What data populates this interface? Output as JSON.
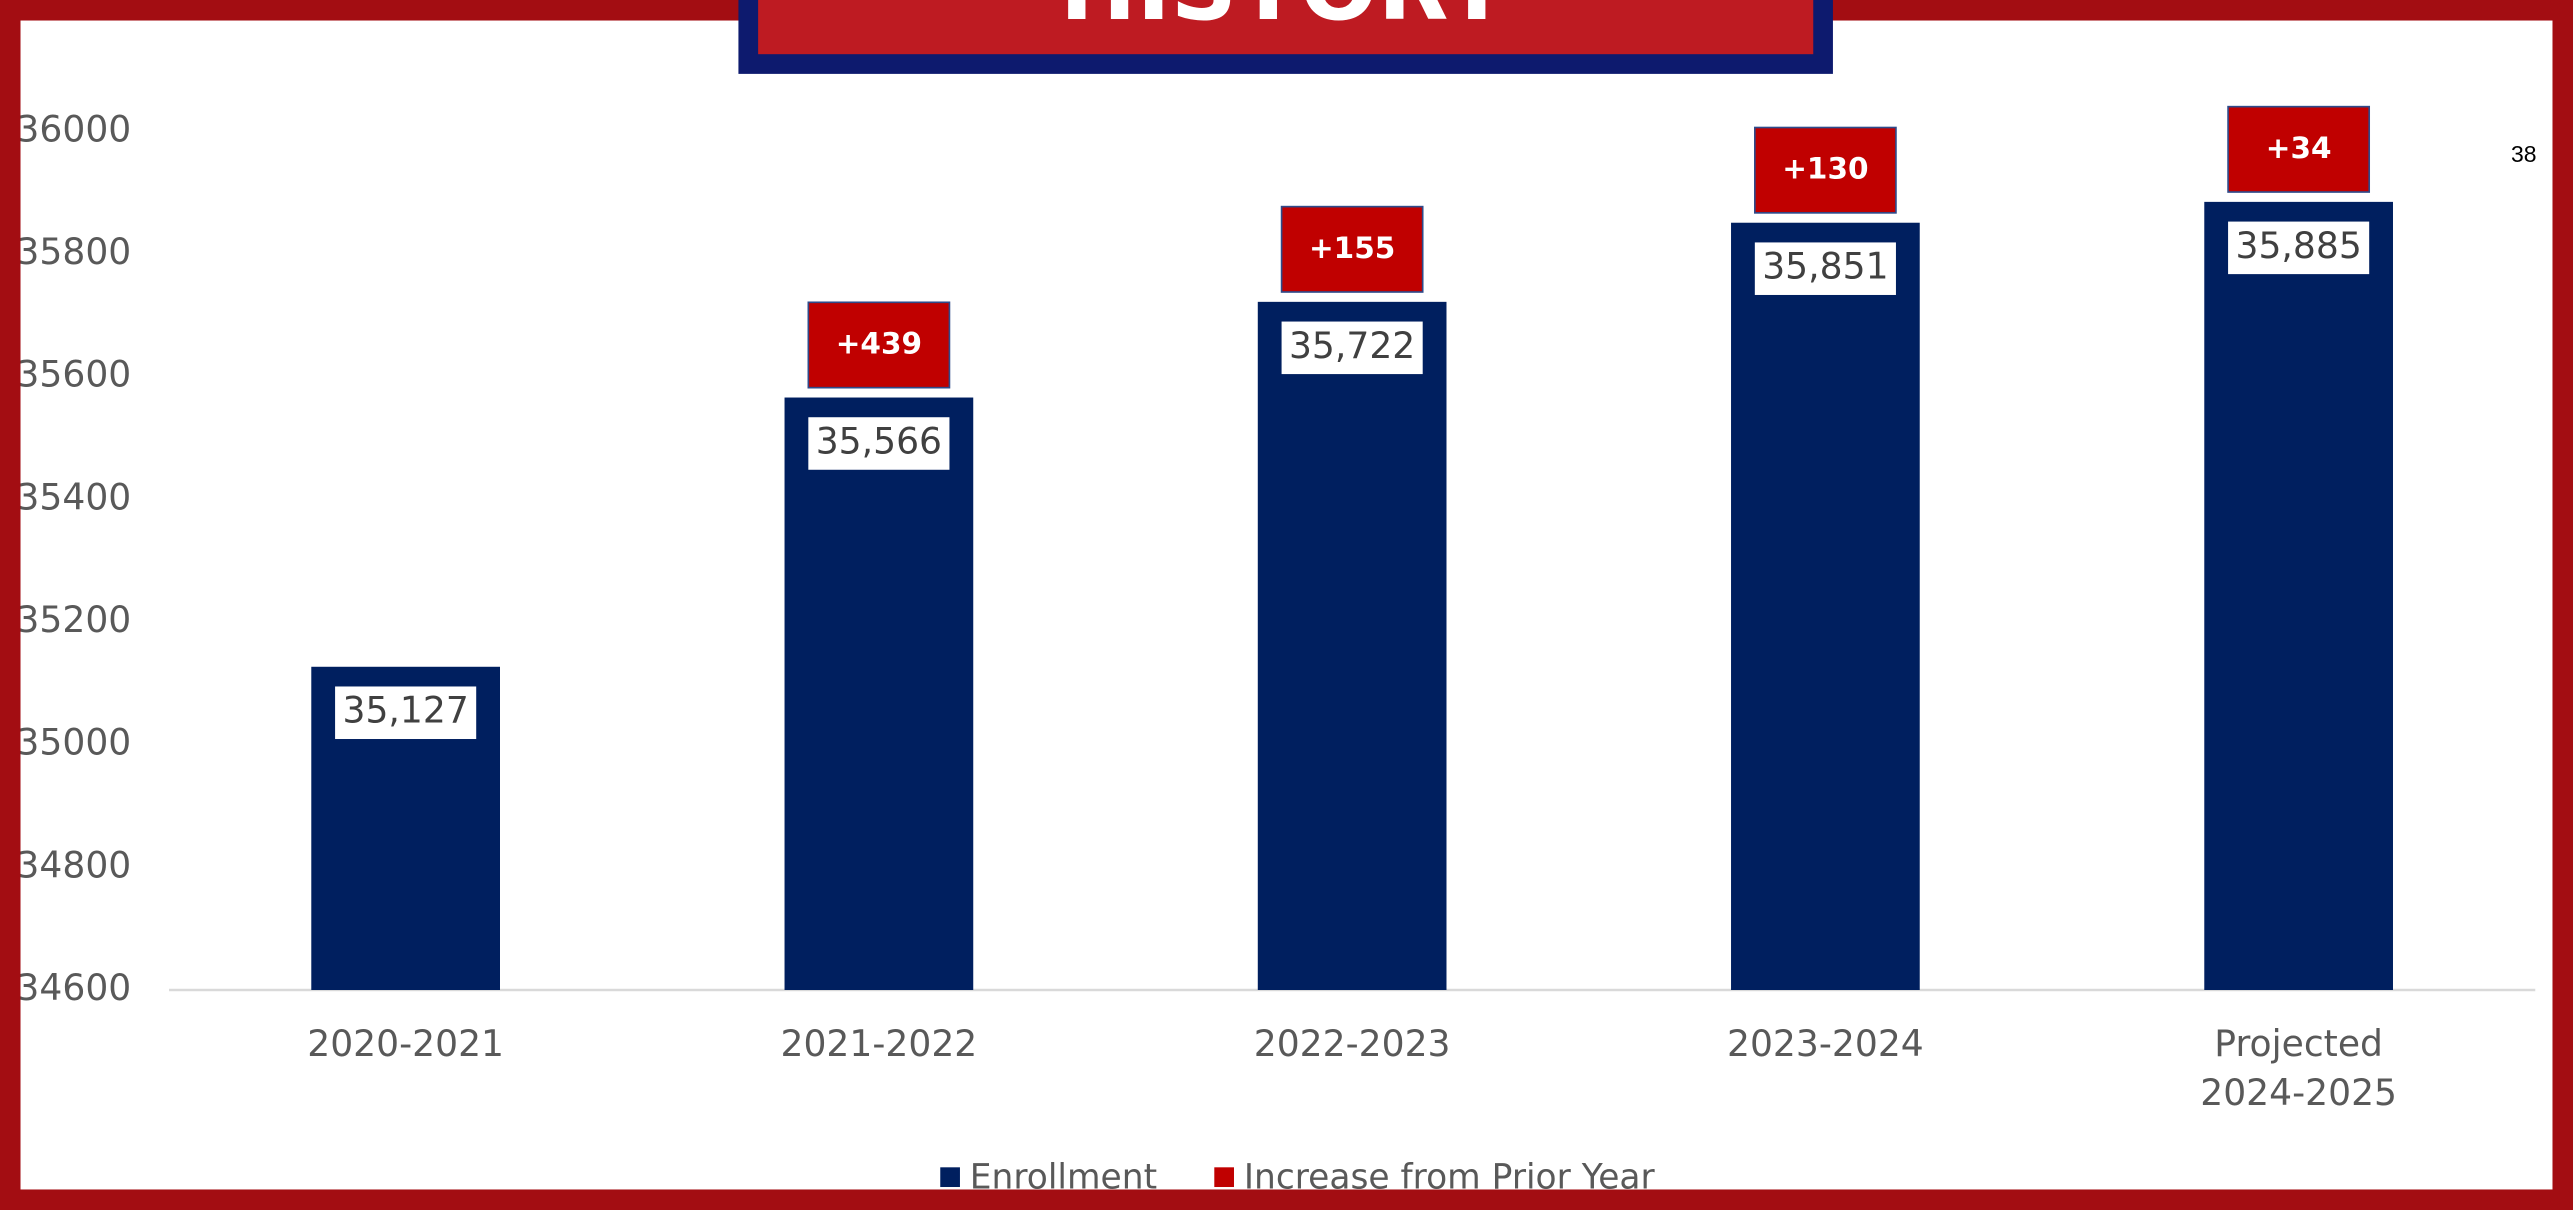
{
  "chart_data": {
    "type": "bar",
    "title": "HISTORY",
    "page_number": "38",
    "categories": [
      "2020-2021",
      "2021-2022",
      "2022-2023",
      "2023-2024",
      "Projected\n2024-2025"
    ],
    "series": [
      {
        "name": "Enrollment",
        "color": "#001f5f",
        "values": [
          35127,
          35566,
          35722,
          35851,
          35885
        ],
        "value_labels": [
          "35,127",
          "35,566",
          "35,722",
          "35,851",
          "35,885"
        ]
      },
      {
        "name": "Increase from Prior Year",
        "color": "#c00000",
        "values": [
          null,
          439,
          155,
          130,
          34
        ],
        "value_labels": [
          null,
          "+439",
          "+155",
          "+130",
          "+34"
        ]
      }
    ],
    "ylim": [
      34600,
      36000
    ],
    "yticks": [
      34600,
      34800,
      35000,
      35200,
      35400,
      35600,
      35800,
      36000
    ],
    "legend": "bottom"
  }
}
